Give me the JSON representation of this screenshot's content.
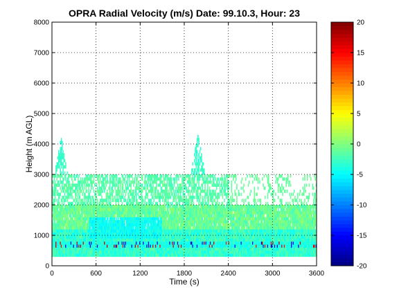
{
  "chart_data": {
    "type": "heatmap",
    "title": "OPRA Radial Velocity (m/s)  Date: 99.10.3, Hour: 23",
    "xlabel": "Time (s)",
    "ylabel": "Height (m AGL)",
    "xlim": [
      0,
      3600
    ],
    "ylim": [
      0,
      8000
    ],
    "x_ticks": [
      0,
      600,
      1200,
      1800,
      2400,
      3000,
      3600
    ],
    "y_ticks": [
      0,
      1000,
      2000,
      3000,
      4000,
      5000,
      6000,
      7000,
      8000
    ],
    "grid": true,
    "colormap": "jet",
    "colorbar": {
      "range": [
        -20,
        20
      ],
      "ticks": [
        -20,
        -15,
        -10,
        -5,
        0,
        5,
        10,
        15,
        20
      ]
    },
    "colors": {
      "low": "#00008f",
      "zero": "#80ff80",
      "high": "#800000",
      "background_fill": "#ffffff"
    },
    "regions": [
      {
        "name": "dense lower layer",
        "x": [
          0,
          3600
        ],
        "y": [
          300,
          2000
        ],
        "dominant_velocity": -1
      },
      {
        "name": "stripe at ~700 m",
        "x": [
          0,
          3600
        ],
        "y": [
          550,
          800
        ],
        "dominant_velocity": -4,
        "with_outliers": true
      },
      {
        "name": "patchy layer",
        "x": [
          0,
          3600
        ],
        "y": [
          2000,
          3000
        ],
        "dominant_velocity": -2
      },
      {
        "name": "plume near t=100 s",
        "x": [
          0,
          300
        ],
        "y": [
          2000,
          4200
        ],
        "dominant_velocity": -3
      },
      {
        "name": "plume near t=1950 s",
        "x": [
          1750,
          2050
        ],
        "y": [
          2000,
          4300
        ],
        "dominant_velocity": -3
      }
    ]
  }
}
